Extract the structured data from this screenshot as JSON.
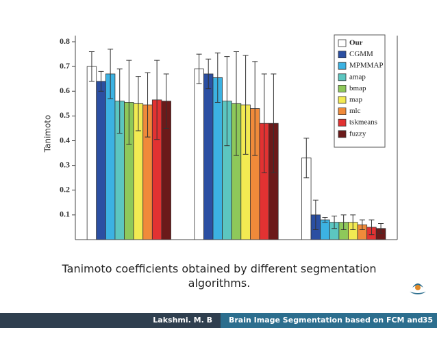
{
  "chart_data": {
    "type": "bar",
    "y_label": "Tanimoto",
    "categories": [
      null,
      null,
      null
    ],
    "ylim": [
      0,
      0.8
    ],
    "yticks": [
      0.1,
      0.2,
      0.3,
      0.4,
      0.5,
      0.6,
      0.7,
      0.8
    ],
    "series": [
      {
        "name": "Our",
        "color": "#ffffff",
        "values": [
          0.7,
          0.69,
          0.33
        ],
        "errors": [
          0.06,
          0.06,
          0.08
        ]
      },
      {
        "name": "CGMM",
        "color": "#2b4fa2",
        "values": [
          0.64,
          0.67,
          0.1
        ],
        "errors": [
          0.04,
          0.06,
          0.06
        ]
      },
      {
        "name": "MPMMAP",
        "color": "#3cb2e2",
        "values": [
          0.67,
          0.655,
          0.08
        ],
        "errors": [
          0.1,
          0.1,
          0.01
        ]
      },
      {
        "name": "amap",
        "color": "#5cc6c0",
        "values": [
          0.56,
          0.56,
          0.07
        ],
        "errors": [
          0.13,
          0.18,
          0.025
        ]
      },
      {
        "name": "bmap",
        "color": "#8ec85a",
        "values": [
          0.555,
          0.55,
          0.07
        ],
        "errors": [
          0.17,
          0.21,
          0.03
        ]
      },
      {
        "name": "map",
        "color": "#f2ea52",
        "values": [
          0.55,
          0.545,
          0.07
        ],
        "errors": [
          0.11,
          0.2,
          0.03
        ]
      },
      {
        "name": "mlc",
        "color": "#f08a3a",
        "values": [
          0.545,
          0.53,
          0.06
        ],
        "errors": [
          0.13,
          0.19,
          0.02
        ]
      },
      {
        "name": "tskmeans",
        "color": "#e23232",
        "values": [
          0.565,
          0.47,
          0.05
        ],
        "errors": [
          0.16,
          0.2,
          0.03
        ]
      },
      {
        "name": "fuzzy",
        "color": "#6b1a1a",
        "values": [
          0.56,
          0.47,
          0.045
        ],
        "errors": [
          0.11,
          0.2,
          0.02
        ]
      }
    ]
  },
  "caption": "Tanimoto coefficients obtained by different segmentation algorithms.",
  "footer": {
    "author": "Lakshmi. M. B",
    "title": "Brain Image Segmentation based on FCM and Rough set",
    "page": 35
  }
}
